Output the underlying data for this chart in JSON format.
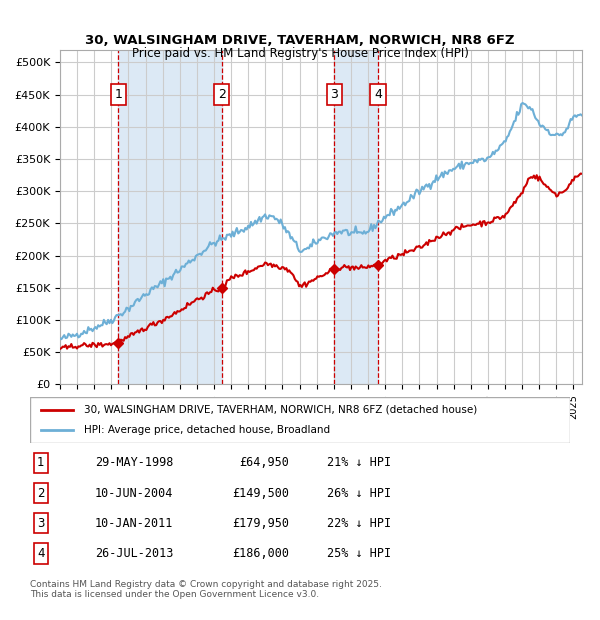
{
  "title_line1": "30, WALSINGHAM DRIVE, TAVERHAM, NORWICH, NR8 6FZ",
  "title_line2": "Price paid vs. HM Land Registry's House Price Index (HPI)",
  "ylabel_ticks": [
    "£0",
    "£50K",
    "£100K",
    "£150K",
    "£200K",
    "£250K",
    "£300K",
    "£350K",
    "£400K",
    "£450K",
    "£500K"
  ],
  "ytick_vals": [
    0,
    50000,
    100000,
    150000,
    200000,
    250000,
    300000,
    350000,
    400000,
    450000,
    500000
  ],
  "ylim": [
    0,
    520000
  ],
  "xlim_start": 1995.0,
  "xlim_end": 2025.5,
  "hpi_color": "#6dafd6",
  "price_color": "#cc0000",
  "sale_marker_color": "#cc0000",
  "dashed_line_color": "#cc0000",
  "shade_color": "#dce9f5",
  "grid_color": "#cccccc",
  "transactions": [
    {
      "num": 1,
      "date_dec": 1998.41,
      "price": 64950,
      "label": "1",
      "date_str": "29-MAY-1998",
      "price_str": "£64,950",
      "pct_str": "21% ↓ HPI"
    },
    {
      "num": 2,
      "date_dec": 2004.44,
      "price": 149500,
      "label": "2",
      "date_str": "10-JUN-2004",
      "price_str": "£149,500",
      "pct_str": "26% ↓ HPI"
    },
    {
      "num": 3,
      "date_dec": 2011.03,
      "price": 179950,
      "label": "3",
      "date_str": "10-JAN-2011",
      "price_str": "£179,950",
      "pct_str": "22% ↓ HPI"
    },
    {
      "num": 4,
      "date_dec": 2013.57,
      "price": 186000,
      "label": "4",
      "date_str": "26-JUL-2013",
      "price_str": "£186,000",
      "pct_str": "25% ↓ HPI"
    }
  ],
  "legend_line1": "30, WALSINGHAM DRIVE, TAVERHAM, NORWICH, NR8 6FZ (detached house)",
  "legend_line2": "HPI: Average price, detached house, Broadland",
  "footnote": "Contains HM Land Registry data © Crown copyright and database right 2025.\nThis data is licensed under the Open Government Licence v3.0.",
  "table_rows": [
    [
      "1",
      "29-MAY-1998",
      "£64,950",
      "21% ↓ HPI"
    ],
    [
      "2",
      "10-JUN-2004",
      "£149,500",
      "26% ↓ HPI"
    ],
    [
      "3",
      "10-JAN-2011",
      "£179,950",
      "22% ↓ HPI"
    ],
    [
      "4",
      "26-JUL-2013",
      "£186,000",
      "25% ↓ HPI"
    ]
  ]
}
